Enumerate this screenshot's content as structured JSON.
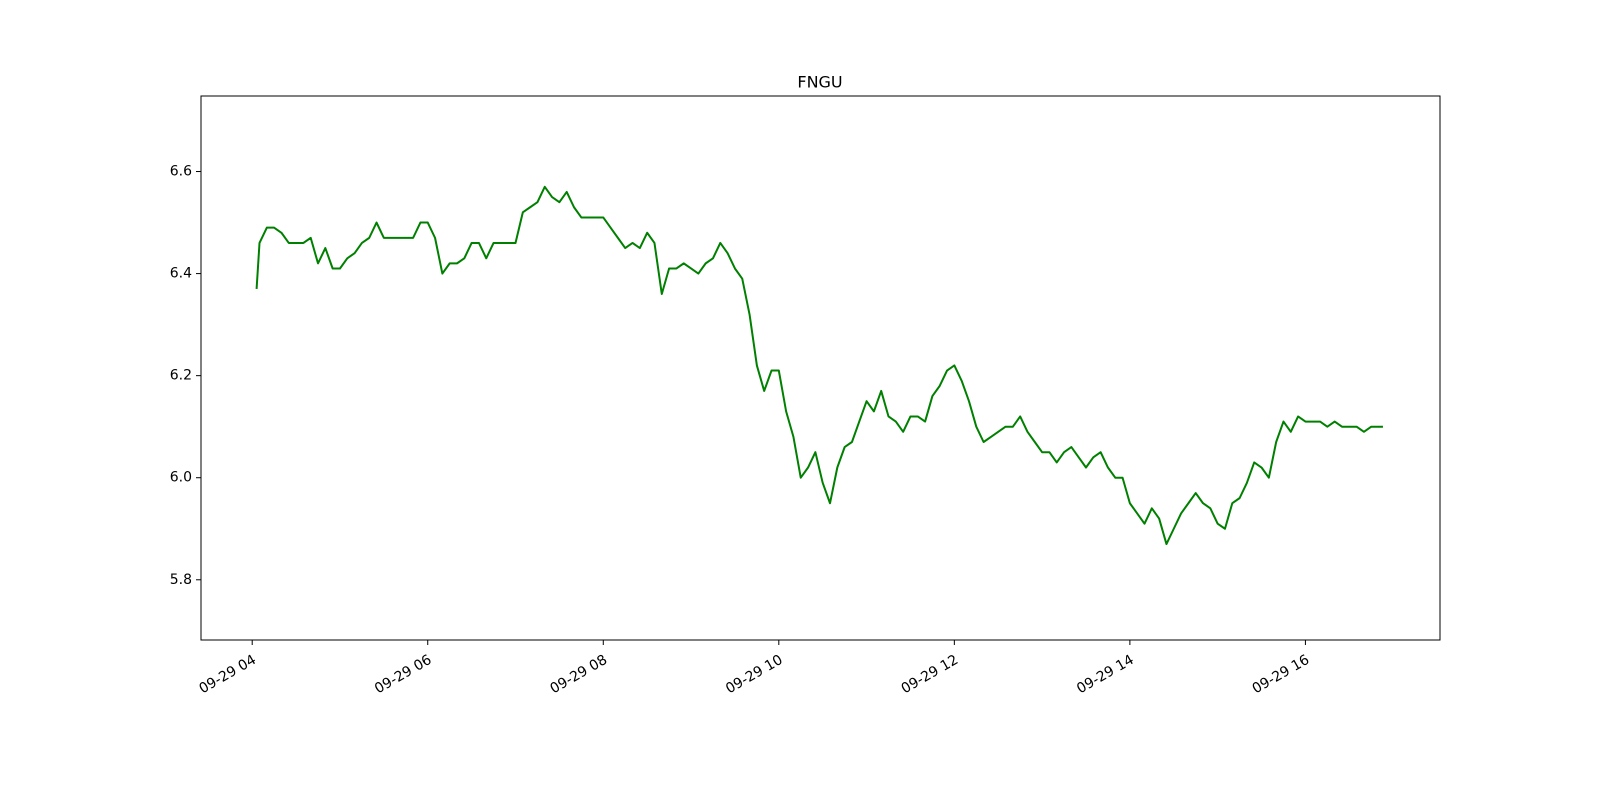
{
  "chart_data": {
    "type": "line",
    "title": "FNGU",
    "x": [
      "09-29 04:03",
      "09-29 04:05",
      "09-29 04:10",
      "09-29 04:15",
      "09-29 04:20",
      "09-29 04:25",
      "09-29 04:30",
      "09-29 04:35",
      "09-29 04:40",
      "09-29 04:45",
      "09-29 04:50",
      "09-29 04:55",
      "09-29 05:00",
      "09-29 05:05",
      "09-29 05:10",
      "09-29 05:15",
      "09-29 05:20",
      "09-29 05:25",
      "09-29 05:30",
      "09-29 05:35",
      "09-29 05:40",
      "09-29 05:45",
      "09-29 05:50",
      "09-29 05:55",
      "09-29 06:00",
      "09-29 06:05",
      "09-29 06:10",
      "09-29 06:15",
      "09-29 06:20",
      "09-29 06:25",
      "09-29 06:30",
      "09-29 06:35",
      "09-29 06:40",
      "09-29 06:45",
      "09-29 06:50",
      "09-29 06:55",
      "09-29 07:00",
      "09-29 07:05",
      "09-29 07:10",
      "09-29 07:15",
      "09-29 07:20",
      "09-29 07:25",
      "09-29 07:30",
      "09-29 07:35",
      "09-29 07:40",
      "09-29 07:45",
      "09-29 07:50",
      "09-29 07:55",
      "09-29 08:00",
      "09-29 08:05",
      "09-29 08:10",
      "09-29 08:15",
      "09-29 08:20",
      "09-29 08:25",
      "09-29 08:30",
      "09-29 08:35",
      "09-29 08:40",
      "09-29 08:45",
      "09-29 08:50",
      "09-29 08:55",
      "09-29 09:00",
      "09-29 09:05",
      "09-29 09:10",
      "09-29 09:15",
      "09-29 09:20",
      "09-29 09:25",
      "09-29 09:30",
      "09-29 09:35",
      "09-29 09:40",
      "09-29 09:45",
      "09-29 09:50",
      "09-29 09:55",
      "09-29 10:00",
      "09-29 10:05",
      "09-29 10:10",
      "09-29 10:15",
      "09-29 10:20",
      "09-29 10:25",
      "09-29 10:30",
      "09-29 10:35",
      "09-29 10:40",
      "09-29 10:45",
      "09-29 10:50",
      "09-29 10:55",
      "09-29 11:00",
      "09-29 11:05",
      "09-29 11:10",
      "09-29 11:15",
      "09-29 11:20",
      "09-29 11:25",
      "09-29 11:30",
      "09-29 11:35",
      "09-29 11:40",
      "09-29 11:45",
      "09-29 11:50",
      "09-29 11:55",
      "09-29 12:00",
      "09-29 12:05",
      "09-29 12:10",
      "09-29 12:15",
      "09-29 12:20",
      "09-29 12:25",
      "09-29 12:30",
      "09-29 12:35",
      "09-29 12:40",
      "09-29 12:45",
      "09-29 12:50",
      "09-29 12:55",
      "09-29 13:00",
      "09-29 13:05",
      "09-29 13:10",
      "09-29 13:15",
      "09-29 13:20",
      "09-29 13:25",
      "09-29 13:30",
      "09-29 13:35",
      "09-29 13:40",
      "09-29 13:45",
      "09-29 13:50",
      "09-29 13:55",
      "09-29 14:00",
      "09-29 14:05",
      "09-29 14:10",
      "09-29 14:15",
      "09-29 14:20",
      "09-29 14:25",
      "09-29 14:30",
      "09-29 14:35",
      "09-29 14:40",
      "09-29 14:45",
      "09-29 14:50",
      "09-29 14:55",
      "09-29 15:00",
      "09-29 15:05",
      "09-29 15:10",
      "09-29 15:15",
      "09-29 15:20",
      "09-29 15:25",
      "09-29 15:30",
      "09-29 15:35",
      "09-29 15:40",
      "09-29 15:45",
      "09-29 15:50",
      "09-29 15:55",
      "09-29 16:00",
      "09-29 16:05",
      "09-29 16:10",
      "09-29 16:15",
      "09-29 16:20",
      "09-29 16:25",
      "09-29 16:30",
      "09-29 16:35",
      "09-29 16:40",
      "09-29 16:45",
      "09-29 16:50",
      "09-29 16:53"
    ],
    "series": [
      {
        "color": "#008000",
        "values": [
          6.37,
          6.46,
          6.49,
          6.49,
          6.48,
          6.46,
          6.46,
          6.46,
          6.47,
          6.42,
          6.45,
          6.41,
          6.41,
          6.43,
          6.44,
          6.46,
          6.47,
          6.5,
          6.47,
          6.47,
          6.47,
          6.47,
          6.47,
          6.5,
          6.5,
          6.47,
          6.4,
          6.42,
          6.42,
          6.43,
          6.46,
          6.46,
          6.43,
          6.46,
          6.46,
          6.46,
          6.46,
          6.52,
          6.53,
          6.54,
          6.57,
          6.55,
          6.54,
          6.56,
          6.53,
          6.51,
          6.51,
          6.51,
          6.51,
          6.49,
          6.47,
          6.45,
          6.46,
          6.45,
          6.48,
          6.46,
          6.36,
          6.41,
          6.41,
          6.42,
          6.41,
          6.4,
          6.42,
          6.43,
          6.46,
          6.44,
          6.41,
          6.39,
          6.32,
          6.22,
          6.17,
          6.21,
          6.21,
          6.13,
          6.08,
          6.0,
          6.02,
          6.05,
          5.99,
          5.95,
          6.02,
          6.06,
          6.07,
          6.11,
          6.15,
          6.13,
          6.17,
          6.12,
          6.11,
          6.09,
          6.12,
          6.12,
          6.11,
          6.16,
          6.18,
          6.21,
          6.22,
          6.19,
          6.15,
          6.1,
          6.07,
          6.08,
          6.09,
          6.1,
          6.1,
          6.12,
          6.09,
          6.07,
          6.05,
          6.05,
          6.03,
          6.05,
          6.06,
          6.04,
          6.02,
          6.04,
          6.05,
          6.02,
          6.0,
          6.0,
          5.95,
          5.93,
          5.91,
          5.94,
          5.92,
          5.87,
          5.9,
          5.93,
          5.95,
          5.97,
          5.95,
          5.94,
          5.91,
          5.9,
          5.95,
          5.96,
          5.99,
          6.03,
          6.02,
          6.0,
          6.07,
          6.11,
          6.09,
          6.12,
          6.11,
          6.11,
          6.11,
          6.1,
          6.11,
          6.1,
          6.1,
          6.1,
          6.09,
          6.1,
          6.1,
          6.1
        ]
      }
    ],
    "xlim": [
      "09-29 03:25",
      "09-29 17:32"
    ],
    "xticks": [
      {
        "value": "09-29 04:00",
        "label": "09-29 04"
      },
      {
        "value": "09-29 06:00",
        "label": "09-29 06"
      },
      {
        "value": "09-29 08:00",
        "label": "09-29 08"
      },
      {
        "value": "09-29 10:00",
        "label": "09-29 10"
      },
      {
        "value": "09-29 12:00",
        "label": "09-29 12"
      },
      {
        "value": "09-29 14:00",
        "label": "09-29 14"
      },
      {
        "value": "09-29 16:00",
        "label": "09-29 16"
      }
    ],
    "ylim": [
      5.682,
      6.748
    ],
    "yticks": [
      5.8,
      {
        "value": 6,
        "label": "6.0"
      },
      6.2,
      6.4,
      6.6
    ],
    "grid": false
  }
}
